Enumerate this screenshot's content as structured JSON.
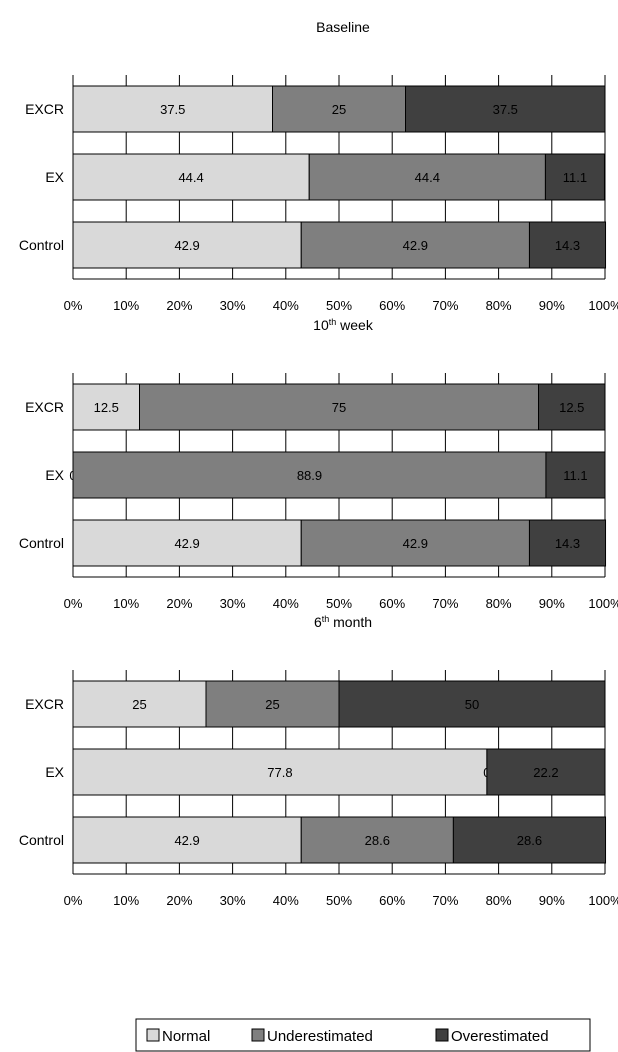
{
  "chart_data": [
    {
      "type": "bar",
      "stacked": true,
      "orientation": "horizontal",
      "normalized": true,
      "title": "Baseline",
      "categories": [
        "EXCR",
        "EX",
        "Control"
      ],
      "series": [
        {
          "name": "Normal",
          "values": [
            37.5,
            44.4,
            42.9
          ],
          "labels": [
            "37.5",
            "44.4",
            "42.9"
          ]
        },
        {
          "name": "Underestimated",
          "values": [
            25,
            44.4,
            42.9
          ],
          "labels": [
            "25",
            "44.4",
            "42.9"
          ]
        },
        {
          "name": "Overestimated",
          "values": [
            37.5,
            11.1,
            14.3
          ],
          "labels": [
            "37.5",
            "11.1",
            "14.3"
          ]
        }
      ],
      "xlim": [
        0,
        100
      ],
      "xticks": [
        "0%",
        "10%",
        "20%",
        "30%",
        "40%",
        "50%",
        "60%",
        "70%",
        "80%",
        "90%",
        "100%"
      ],
      "grid": true
    },
    {
      "type": "bar",
      "stacked": true,
      "orientation": "horizontal",
      "normalized": true,
      "title": "10th week",
      "title_base": "10",
      "title_sup": "th",
      "title_rest": " week",
      "categories": [
        "EXCR",
        "EX",
        "Control"
      ],
      "series": [
        {
          "name": "Normal",
          "values": [
            12.5,
            0,
            42.9
          ],
          "labels": [
            "12.5",
            "0",
            "42.9"
          ]
        },
        {
          "name": "Underestimated",
          "values": [
            75,
            88.9,
            42.9
          ],
          "labels": [
            "75",
            "88.9",
            "42.9"
          ]
        },
        {
          "name": "Overestimated",
          "values": [
            12.5,
            11.1,
            14.3
          ],
          "labels": [
            "12.5",
            "11.1",
            "14.3"
          ]
        }
      ],
      "xlim": [
        0,
        100
      ],
      "xticks": [
        "0%",
        "10%",
        "20%",
        "30%",
        "40%",
        "50%",
        "60%",
        "70%",
        "80%",
        "90%",
        "100%"
      ],
      "grid": true
    },
    {
      "type": "bar",
      "stacked": true,
      "orientation": "horizontal",
      "normalized": true,
      "title": "6th month",
      "title_base": "6",
      "title_sup": "th",
      "title_rest": " month",
      "categories": [
        "EXCR",
        "EX",
        "Control"
      ],
      "series": [
        {
          "name": "Normal",
          "values": [
            25,
            77.8,
            42.9
          ],
          "labels": [
            "25",
            "77.8",
            "42.9"
          ]
        },
        {
          "name": "Underestimated",
          "values": [
            25,
            0,
            28.6
          ],
          "labels": [
            "25",
            "0",
            "28.6"
          ]
        },
        {
          "name": "Overestimated",
          "values": [
            50,
            22.2,
            28.6
          ],
          "labels": [
            "50",
            "22.2",
            "28.6"
          ]
        }
      ],
      "xlim": [
        0,
        100
      ],
      "xticks": [
        "0%",
        "10%",
        "20%",
        "30%",
        "40%",
        "50%",
        "60%",
        "70%",
        "80%",
        "90%",
        "100%"
      ],
      "grid": true
    }
  ],
  "legend": {
    "position": "bottom",
    "items": [
      {
        "label": "Normal",
        "color": "#d9d9d9"
      },
      {
        "label": "Underestimated",
        "color": "#7f7f7f"
      },
      {
        "label": "Overestimated",
        "color": "#404040"
      }
    ]
  },
  "colors": {
    "normal": "#d9d9d9",
    "underestimated": "#7f7f7f",
    "overestimated": "#404040",
    "normal_label_text": "#000000",
    "underestimated_label_text": "#000000",
    "overestimated_label_text": "#ffffff",
    "gridline": "#000000"
  }
}
